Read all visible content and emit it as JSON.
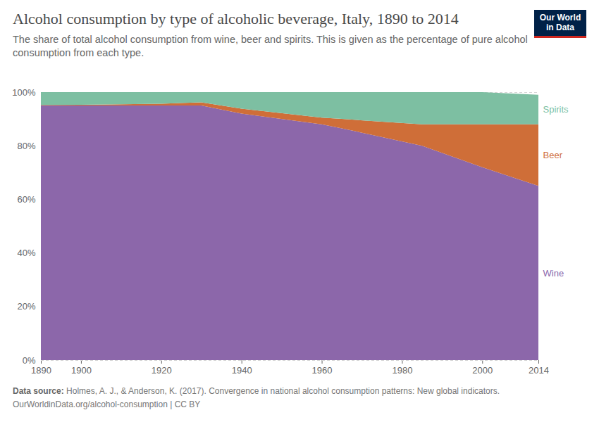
{
  "chart_data": {
    "type": "area",
    "stacked": true,
    "title": "Alcohol consumption by type of alcoholic beverage, Italy, 1890 to 2014",
    "subtitle": "The share of total alcohol consumption from wine, beer and spirits. This is given as the percentage of pure alcohol consumption from each type.",
    "logo": "Our World in Data",
    "source_label": "Data source:",
    "source": "Holmes, A. J., & Anderson, K. (2017). Convergence in national alcohol consumption patterns: New global indicators.",
    "footer": "OurWorldinData.org/alcohol-consumption | CC BY",
    "x": [
      1890,
      1900,
      1920,
      1930,
      1940,
      1960,
      1965,
      1985,
      2000,
      2014
    ],
    "series": [
      {
        "name": "Wine",
        "color": "#8c67aa",
        "values": [
          95,
          95,
          95,
          95,
          92,
          88,
          86.5,
          80,
          72,
          65
        ]
      },
      {
        "name": "Beer",
        "color": "#cf6e38",
        "values": [
          0.2,
          0.3,
          0.7,
          1.2,
          1.8,
          2.5,
          3.5,
          8,
          16,
          23
        ]
      },
      {
        "name": "Spirits",
        "color": "#7dbfa2",
        "values": [
          4.8,
          4.7,
          4.3,
          3.8,
          6.2,
          9.5,
          10,
          12,
          12,
          11
        ]
      }
    ],
    "xlim": [
      1890,
      2014
    ],
    "xticks": [
      1890,
      1900,
      1920,
      1940,
      1960,
      1980,
      2000,
      2014
    ],
    "ylim": [
      0,
      100
    ],
    "yticks": [
      {
        "value": 0,
        "label": "0%"
      },
      {
        "value": 20,
        "label": "20%"
      },
      {
        "value": 40,
        "label": "40%"
      },
      {
        "value": 60,
        "label": "60%"
      },
      {
        "value": 80,
        "label": "80%"
      },
      {
        "value": 100,
        "label": "100%"
      }
    ],
    "grid": true
  }
}
